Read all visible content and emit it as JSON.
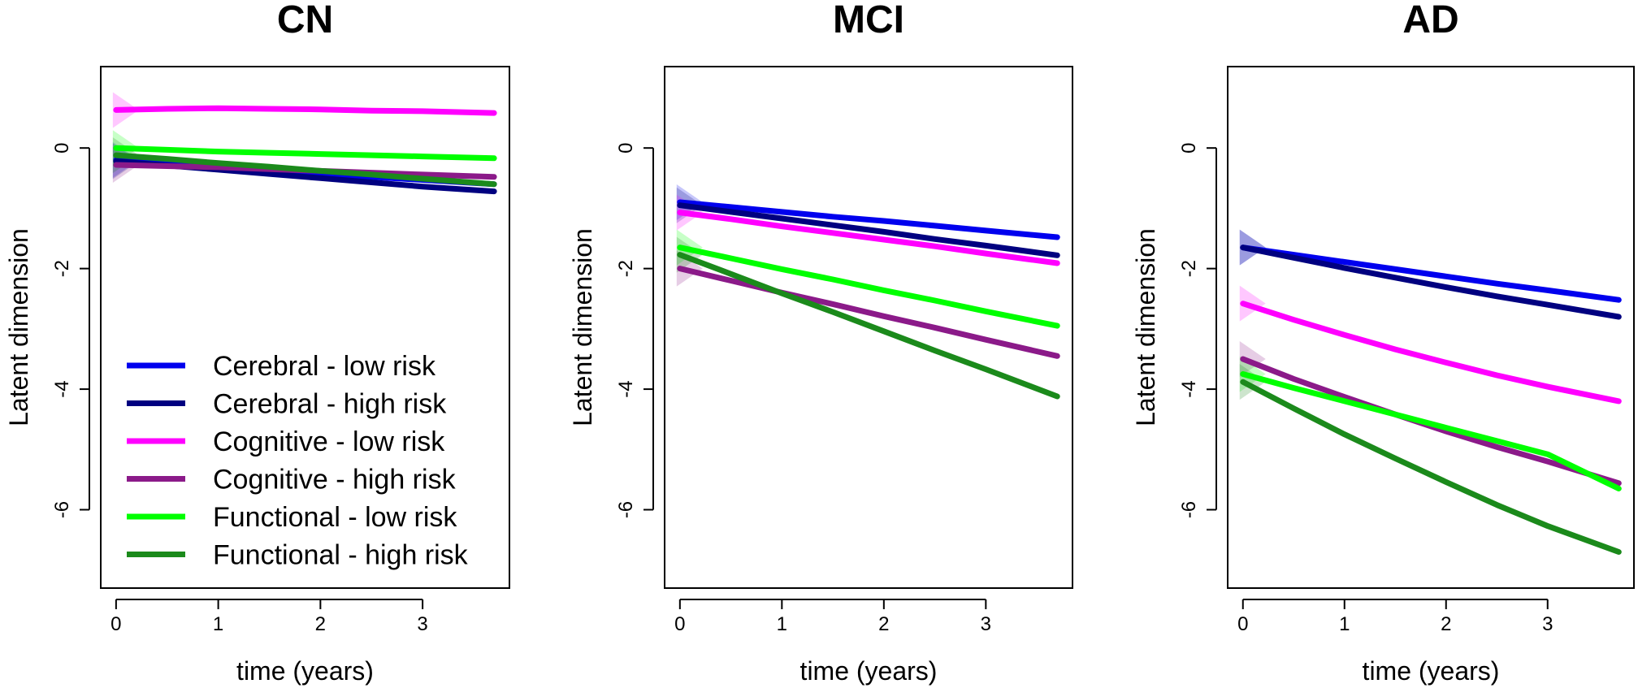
{
  "chart_data": [
    {
      "type": "line",
      "title": "CN",
      "xlabel": "time (years)",
      "ylabel": "Latent dimension",
      "xlim": [
        -0.15,
        3.85
      ],
      "ylim": [
        -7.3,
        1.35
      ],
      "xticks": [
        "0",
        "1",
        "2",
        "3"
      ],
      "yticks": [
        "0",
        "-2",
        "-4",
        "-6"
      ],
      "grid": false,
      "legend_position": "bottom-left",
      "x": [
        0,
        0.5,
        1,
        1.5,
        2,
        2.5,
        3,
        3.7
      ],
      "series": [
        {
          "name": "Cerebral - low risk",
          "color": "#0000ee",
          "values": [
            -0.2,
            -0.26,
            -0.31,
            -0.37,
            -0.42,
            -0.48,
            -0.53,
            -0.6
          ]
        },
        {
          "name": "Cerebral  - high risk",
          "color": "#000080",
          "values": [
            -0.22,
            -0.29,
            -0.36,
            -0.43,
            -0.5,
            -0.57,
            -0.64,
            -0.72
          ]
        },
        {
          "name": "Cognitive - low risk",
          "color": "#ff00ff",
          "values": [
            0.63,
            0.65,
            0.66,
            0.65,
            0.64,
            0.62,
            0.61,
            0.58
          ]
        },
        {
          "name": "Cognitive - high risk",
          "color": "#8b1a89",
          "values": [
            -0.28,
            -0.3,
            -0.32,
            -0.35,
            -0.38,
            -0.41,
            -0.44,
            -0.48
          ]
        },
        {
          "name": "Functional - low risk",
          "color": "#00ff00",
          "values": [
            0.0,
            -0.03,
            -0.06,
            -0.08,
            -0.1,
            -0.12,
            -0.14,
            -0.17
          ]
        },
        {
          "name": "Functional - high risk",
          "color": "#1b8a1b",
          "values": [
            -0.12,
            -0.18,
            -0.25,
            -0.31,
            -0.38,
            -0.44,
            -0.51,
            -0.6
          ]
        }
      ]
    },
    {
      "type": "line",
      "title": "MCI",
      "xlabel": "time (years)",
      "ylabel": "Latent dimension",
      "xlim": [
        -0.15,
        3.85
      ],
      "ylim": [
        -7.3,
        1.35
      ],
      "xticks": [
        "0",
        "1",
        "2",
        "3"
      ],
      "yticks": [
        "0",
        "-2",
        "-4",
        "-6"
      ],
      "grid": false,
      "x": [
        0,
        0.5,
        1,
        1.5,
        2,
        2.5,
        3,
        3.7
      ],
      "series": [
        {
          "name": "Cerebral - low risk",
          "color": "#0000ee",
          "values": [
            -0.9,
            -0.98,
            -1.06,
            -1.14,
            -1.21,
            -1.29,
            -1.37,
            -1.48
          ]
        },
        {
          "name": "Cerebral  - high risk",
          "color": "#000080",
          "values": [
            -0.95,
            -1.06,
            -1.17,
            -1.28,
            -1.39,
            -1.51,
            -1.62,
            -1.78
          ]
        },
        {
          "name": "Cognitive - low risk",
          "color": "#ff00ff",
          "values": [
            -1.07,
            -1.18,
            -1.3,
            -1.41,
            -1.52,
            -1.63,
            -1.75,
            -1.91
          ]
        },
        {
          "name": "Cognitive - high risk",
          "color": "#8b1a89",
          "values": [
            -2.0,
            -2.2,
            -2.4,
            -2.59,
            -2.79,
            -2.98,
            -3.18,
            -3.45
          ]
        },
        {
          "name": "Functional - low risk",
          "color": "#00ff00",
          "values": [
            -1.65,
            -1.83,
            -2.01,
            -2.18,
            -2.36,
            -2.53,
            -2.71,
            -2.95
          ]
        },
        {
          "name": "Functional - high risk",
          "color": "#1b8a1b",
          "values": [
            -1.77,
            -2.09,
            -2.41,
            -2.72,
            -3.04,
            -3.36,
            -3.67,
            -4.12
          ]
        }
      ]
    },
    {
      "type": "line",
      "title": "AD",
      "xlabel": "time (years)",
      "ylabel": "Latent dimension",
      "xlim": [
        -0.15,
        3.85
      ],
      "ylim": [
        -7.3,
        1.35
      ],
      "xticks": [
        "0",
        "1",
        "2",
        "3"
      ],
      "yticks": [
        "0",
        "-2",
        "-4",
        "-6"
      ],
      "grid": false,
      "x": [
        0,
        0.5,
        1,
        1.5,
        2,
        2.5,
        3,
        3.7
      ],
      "series": [
        {
          "name": "Cerebral - low risk",
          "color": "#0000ee",
          "values": [
            -1.65,
            -1.77,
            -1.89,
            -2.01,
            -2.13,
            -2.25,
            -2.36,
            -2.52
          ]
        },
        {
          "name": "Cerebral  - high risk",
          "color": "#000080",
          "values": [
            -1.65,
            -1.82,
            -1.99,
            -2.15,
            -2.31,
            -2.46,
            -2.6,
            -2.8
          ]
        },
        {
          "name": "Cognitive - low risk",
          "color": "#ff00ff",
          "values": [
            -2.58,
            -2.85,
            -3.1,
            -3.34,
            -3.56,
            -3.77,
            -3.96,
            -4.2
          ]
        },
        {
          "name": "Cognitive - high risk",
          "color": "#8b1a89",
          "values": [
            -3.5,
            -3.83,
            -4.13,
            -4.42,
            -4.7,
            -4.96,
            -5.2,
            -5.56
          ]
        },
        {
          "name": "Functional - low risk",
          "color": "#00ff00",
          "values": [
            -3.75,
            -3.98,
            -4.2,
            -4.42,
            -4.64,
            -4.86,
            -5.08,
            -5.65
          ]
        },
        {
          "name": "Functional - high risk",
          "color": "#1b8a1b",
          "values": [
            -3.88,
            -4.32,
            -4.75,
            -5.15,
            -5.54,
            -5.92,
            -6.27,
            -6.7
          ]
        }
      ]
    }
  ]
}
